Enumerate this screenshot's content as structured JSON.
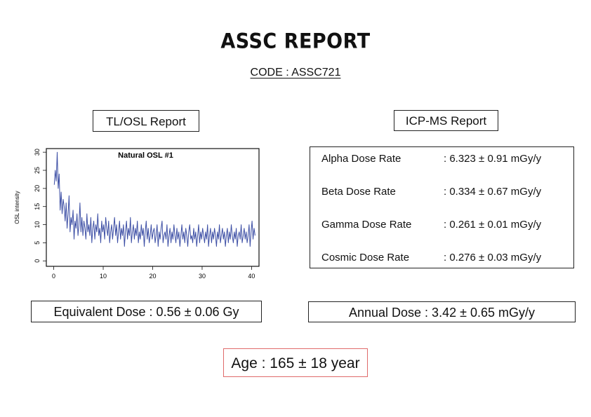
{
  "report": {
    "title": "ASSC REPORT",
    "code": "CODE : ASSC721"
  },
  "tl_osl": {
    "label": "TL/OSL Report",
    "equivalent_dose": "Equivalent Dose : 0.56 ± 0.06 Gy"
  },
  "icp_ms": {
    "label": "ICP-MS Report",
    "rows": [
      {
        "name": "Alpha Dose Rate",
        "value": ": 6.323 ± 0.91 mGy/y"
      },
      {
        "name": "Beta Dose Rate",
        "value": ": 0.334 ± 0.67 mGy/y"
      },
      {
        "name": "Gamma Dose Rate",
        "value": ": 0.261 ± 0.01 mGy/y"
      },
      {
        "name": "Cosmic Dose Rate",
        "value": ": 0.276 ± 0.03 mGy/y"
      }
    ],
    "annual_dose": "Annual Dose : 3.42 ± 0.65 mGy/y"
  },
  "age": "Age : 165 ± 18 year",
  "chart_data": {
    "type": "line",
    "title": "Natural OSL #1",
    "xlabel": "",
    "ylabel": "OSL intensity",
    "xlim": [
      -1.5,
      41.5
    ],
    "ylim": [
      -1.5,
      31
    ],
    "x_ticks": [
      0,
      10,
      20,
      30,
      40
    ],
    "y_ticks": [
      0,
      5,
      10,
      15,
      20,
      25,
      30
    ],
    "color": "#3d4fa5",
    "series": [
      {
        "x_step": 0.2,
        "x_start": 0.1,
        "values": [
          21,
          25,
          22,
          30,
          20,
          24,
          14,
          19,
          13,
          17,
          15,
          11,
          16,
          9,
          13,
          18,
          8,
          12,
          10,
          14,
          6,
          11,
          9,
          13,
          7,
          10,
          16,
          8,
          12,
          7,
          11,
          9,
          6,
          13,
          8,
          10,
          7,
          12,
          5,
          9,
          11,
          6,
          10,
          8,
          13,
          7,
          9,
          5,
          11,
          8,
          10,
          6,
          12,
          9,
          7,
          11,
          5,
          8,
          10,
          6,
          9,
          12,
          7,
          10,
          5,
          8,
          11,
          6,
          9,
          7,
          10,
          4,
          8,
          11,
          6,
          9,
          7,
          12,
          5,
          8,
          10,
          6,
          9,
          7,
          11,
          5,
          8,
          6,
          10,
          7,
          9,
          4,
          8,
          11,
          6,
          9,
          5,
          7,
          10,
          6,
          8,
          9,
          5,
          7,
          10,
          4,
          8,
          6,
          9,
          11,
          5,
          7,
          8,
          6,
          10,
          4,
          7,
          9,
          5,
          8,
          6,
          10,
          7,
          5,
          9,
          6,
          8,
          4,
          7,
          10,
          6,
          8,
          5,
          9,
          7,
          4,
          8,
          10,
          6,
          7,
          5,
          9,
          6,
          8,
          4,
          7,
          10,
          5,
          8,
          6,
          9,
          7,
          5,
          8,
          6,
          10,
          4,
          7,
          9,
          5,
          8,
          6,
          9,
          7,
          4,
          8,
          6,
          10,
          5,
          7,
          9,
          6,
          8,
          4,
          7,
          9,
          5,
          8,
          6,
          10,
          7,
          5,
          8,
          6,
          9,
          4,
          7,
          8,
          6,
          10,
          5,
          7,
          9,
          6,
          8,
          5,
          7,
          10,
          4,
          8,
          11,
          6,
          9,
          7
        ]
      }
    ]
  }
}
